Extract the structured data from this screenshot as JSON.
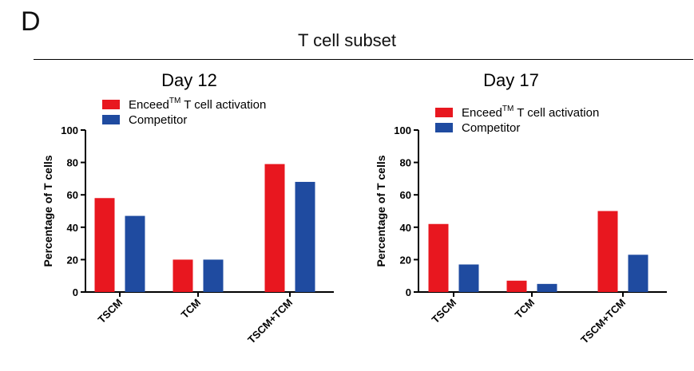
{
  "figure": {
    "panel_letter": "D",
    "title": "T cell subset"
  },
  "colors": {
    "series_1": "#e8171f",
    "series_2": "#1f4ba0"
  },
  "chart_data": [
    {
      "type": "bar",
      "title": "Day 12",
      "categories": [
        "TSCM",
        "TCM",
        "TSCM+TCM"
      ],
      "series": [
        {
          "name": "EnceedTM T cell activation",
          "name_main": "Enceed",
          "name_sup": "TM",
          "name_rest": " T cell activation",
          "values": [
            58,
            20,
            79
          ]
        },
        {
          "name": "Competitor",
          "values": [
            47,
            20,
            68
          ]
        }
      ],
      "ylabel": "Percentage of T cells",
      "ylim": [
        0,
        100
      ],
      "yticks": [
        0,
        20,
        40,
        60,
        80,
        100
      ],
      "grid": false,
      "legend": "top-left"
    },
    {
      "type": "bar",
      "title": "Day 17",
      "categories": [
        "TSCM",
        "TCM",
        "TSCM+TCM"
      ],
      "series": [
        {
          "name": "EnceedTM T cell activation",
          "name_main": "Enceed",
          "name_sup": "TM",
          "name_rest": " T cell activation",
          "values": [
            42,
            7,
            50
          ]
        },
        {
          "name": "Competitor",
          "values": [
            17,
            5,
            23
          ]
        }
      ],
      "ylabel": "Percentage of T cells",
      "ylim": [
        0,
        100
      ],
      "yticks": [
        0,
        20,
        40,
        60,
        80,
        100
      ],
      "grid": false,
      "legend": "top-left"
    }
  ]
}
